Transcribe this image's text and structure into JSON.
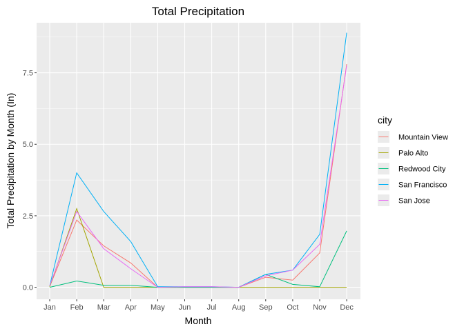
{
  "chart_data": {
    "type": "line",
    "title": "Total Precipitation",
    "xlabel": "Month",
    "ylabel": "Total Precipitation by Month (In)",
    "categories": [
      "Jan",
      "Feb",
      "Mar",
      "Apr",
      "May",
      "Jun",
      "Jul",
      "Aug",
      "Sep",
      "Oct",
      "Nov",
      "Dec"
    ],
    "y_ticks": [
      0.0,
      2.5,
      5.0,
      7.5
    ],
    "y_tick_labels": [
      "0.0",
      "2.5",
      "5.0",
      "7.5"
    ],
    "ylim": [
      -0.42,
      9.25
    ],
    "grid": true,
    "legend_title": "city",
    "legend_position": "right",
    "series": [
      {
        "name": "Mountain View",
        "color": "#F8766D",
        "values": [
          0.03,
          2.35,
          1.45,
          0.85,
          0.0,
          0.0,
          0.0,
          0.0,
          0.35,
          0.25,
          1.2,
          7.8
        ]
      },
      {
        "name": "Palo Alto",
        "color": "#A3A500",
        "values": [
          0.02,
          2.75,
          0.0,
          0.0,
          0.0,
          0.0,
          0.0,
          0.0,
          0.0,
          0.0,
          0.0,
          0.0
        ]
      },
      {
        "name": "Redwood City",
        "color": "#00BF7D",
        "values": [
          0.0,
          0.22,
          0.07,
          0.07,
          0.0,
          0.0,
          0.0,
          0.0,
          0.45,
          0.1,
          0.02,
          1.97
        ]
      },
      {
        "name": "San Francisco",
        "color": "#00B0F6",
        "values": [
          0.05,
          4.0,
          2.65,
          1.6,
          0.02,
          0.02,
          0.02,
          0.0,
          0.45,
          0.6,
          1.85,
          8.9
        ]
      },
      {
        "name": "San Jose",
        "color": "#E76BF3",
        "values": [
          0.05,
          2.65,
          1.35,
          0.65,
          0.0,
          0.02,
          0.02,
          0.0,
          0.4,
          0.6,
          1.5,
          7.75
        ]
      }
    ]
  }
}
